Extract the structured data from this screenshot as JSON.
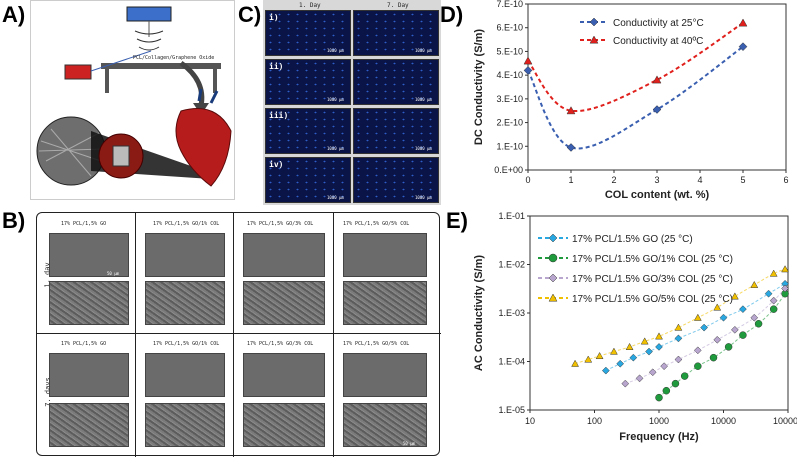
{
  "labels": {
    "a": "A)",
    "b": "B)",
    "c": "C)",
    "d": "D)",
    "e": "E)"
  },
  "panel_a": {
    "device_label": "PCL/Collagen/Graphene Oxide"
  },
  "panel_b": {
    "columns": [
      "17% PCL/1,5% GO",
      "17% PCL/1,5% GO/1% COL",
      "17% PCL/1,5% GO/3% COL",
      "17% PCL/1,5% GO/5% COL"
    ],
    "rows": [
      "1. day",
      "7. days"
    ],
    "scalebar": "50 µm"
  },
  "panel_c": {
    "col_headers": [
      "1. Day",
      "7. Day"
    ],
    "row_labels": [
      "i)",
      "ii)",
      "iii)",
      "iv)"
    ],
    "scalebar": "1000 µm"
  },
  "colors": {
    "blue": "#3a5fb0",
    "red": "#e0201c",
    "cyan": "#29a7e0",
    "green": "#1f9a3c",
    "violet": "#b8a6cf",
    "yellow": "#f0c000"
  },
  "chart_data": [
    {
      "id": "D",
      "type": "line",
      "xlabel": "COL content (wt. %)",
      "ylabel": "DC Conductivity (S/m)",
      "xlim": [
        0,
        6
      ],
      "ylim": [
        0,
        7e-10
      ],
      "x_ticks": [
        "0",
        "1",
        "2",
        "3",
        "4",
        "5",
        "6"
      ],
      "y_ticks": [
        "0.E+00",
        "1.E-10",
        "2.E-10",
        "3.E-10",
        "4.E-10",
        "5.E-10",
        "6.E-10",
        "7.E-10"
      ],
      "legend_position": "top-center",
      "series": [
        {
          "name": "Conductivity at 25°C",
          "color": "#3a5fb0",
          "marker": "diamond",
          "x": [
            0,
            1,
            3,
            5
          ],
          "y": [
            4.2e-10,
            9.5e-11,
            2.55e-10,
            5.2e-10
          ]
        },
        {
          "name": "Conductivity at 40ºC",
          "color": "#e0201c",
          "marker": "triangle",
          "x": [
            0,
            1,
            3,
            5
          ],
          "y": [
            4.6e-10,
            2.5e-10,
            3.8e-10,
            6.2e-10
          ]
        }
      ]
    },
    {
      "id": "E",
      "type": "scatter",
      "xlabel": "Frequency (Hz)",
      "ylabel": "AC Conductivity (S/m)",
      "xscale": "log",
      "yscale": "log",
      "xlim": [
        10,
        100000
      ],
      "ylim": [
        1e-05,
        0.1
      ],
      "x_ticks": [
        "10",
        "100",
        "1000",
        "10000",
        "100000"
      ],
      "y_ticks": [
        "1.E-05",
        "1.E-04",
        "1.E-03",
        "1.E-02",
        "1.E-01"
      ],
      "legend_position": "top-left",
      "series": [
        {
          "name": "17% PCL/1.5% GO (25 °C)",
          "color": "#29a7e0",
          "marker": "diamond",
          "x": [
            150,
            250,
            400,
            700,
            1000,
            2000,
            5000,
            10000,
            20000,
            50000,
            90000
          ],
          "y": [
            6.5e-05,
            9e-05,
            0.00012,
            0.00016,
            0.0002,
            0.0003,
            0.0005,
            0.0008,
            0.0012,
            0.0025,
            0.004
          ]
        },
        {
          "name": "17% PCL/1.5% GO/1% COL (25 °C)",
          "color": "#1f9a3c",
          "marker": "circle",
          "x": [
            1000,
            1300,
            1800,
            2500,
            4000,
            7000,
            12000,
            20000,
            35000,
            60000,
            90000
          ],
          "y": [
            1.8e-05,
            2.5e-05,
            3.5e-05,
            5e-05,
            8e-05,
            0.00012,
            0.0002,
            0.00035,
            0.0006,
            0.0012,
            0.0025
          ]
        },
        {
          "name": "17% PCL/1.5% GO/3% COL (25 °C)",
          "color": "#b8a6cf",
          "marker": "diamond",
          "x": [
            300,
            500,
            800,
            1200,
            2000,
            4000,
            8000,
            15000,
            30000,
            60000,
            90000
          ],
          "y": [
            3.5e-05,
            4.5e-05,
            6e-05,
            8e-05,
            0.00011,
            0.00017,
            0.00028,
            0.00045,
            0.0008,
            0.0018,
            0.0032
          ]
        },
        {
          "name": "17% PCL/1.5% GO/5% COL (25 °C)",
          "color": "#f0c000",
          "marker": "triangle",
          "x": [
            50,
            80,
            120,
            200,
            350,
            600,
            1000,
            2000,
            4000,
            8000,
            15000,
            30000,
            60000,
            90000
          ],
          "y": [
            9e-05,
            0.00011,
            0.00013,
            0.00016,
            0.0002,
            0.00026,
            0.00033,
            0.0005,
            0.0008,
            0.0013,
            0.0022,
            0.0038,
            0.0065,
            0.008
          ]
        }
      ]
    }
  ]
}
